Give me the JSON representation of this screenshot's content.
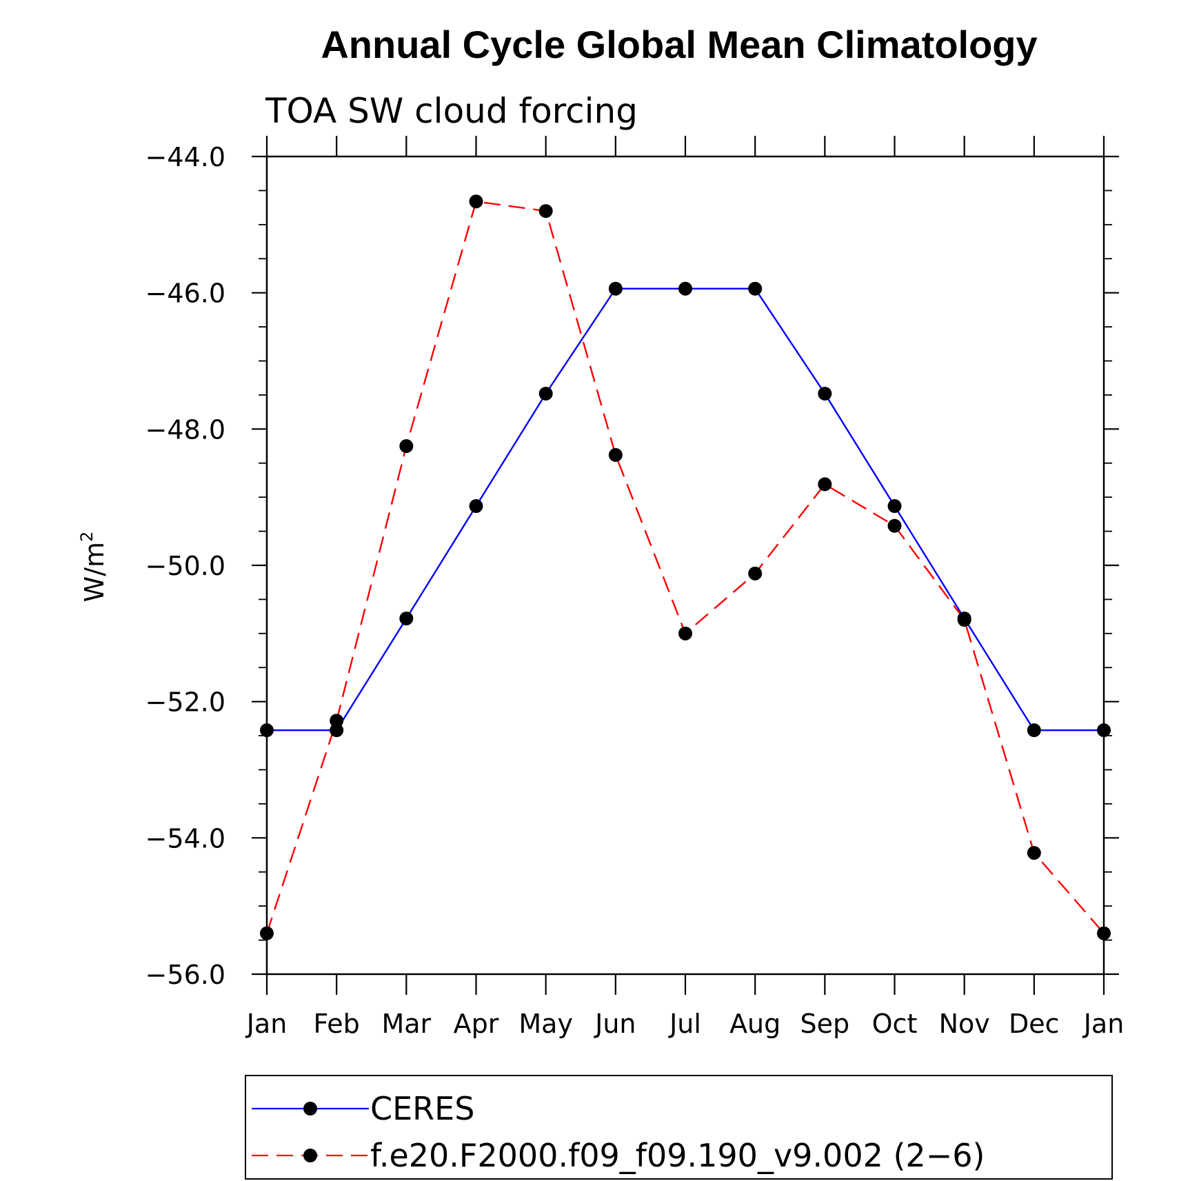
{
  "chart_data": {
    "type": "line",
    "title": "Annual Cycle Global Mean Climatology",
    "subtitle": "TOA SW cloud forcing",
    "ylabel": "W/m",
    "ylabel_superscript": "2",
    "xlabel": "",
    "categories": [
      "Jan",
      "Feb",
      "Mar",
      "Apr",
      "May",
      "Jun",
      "Jul",
      "Aug",
      "Sep",
      "Oct",
      "Nov",
      "Dec",
      "Jan"
    ],
    "ylim": [
      -56.0,
      -44.0
    ],
    "yticks": [
      -56.0,
      -54.0,
      -52.0,
      -50.0,
      -48.0,
      -46.0,
      -44.0
    ],
    "ytick_labels": [
      "−56.0",
      "−54.0",
      "−52.0",
      "−50.0",
      "−48.0",
      "−46.0",
      "−44.0"
    ],
    "series": [
      {
        "name": "CERES",
        "color": "#0000ff",
        "dash": "solid",
        "values": [
          -52.42,
          -52.42,
          -50.78,
          -49.13,
          -47.48,
          -45.94,
          -45.94,
          -45.94,
          -47.48,
          -49.13,
          -50.78,
          -52.42,
          -52.42
        ]
      },
      {
        "name": "f.e20.F2000.f09_f09.190_v9.002 (2−6)",
        "color": "#ff0000",
        "dash": "dashed",
        "values": [
          -55.4,
          -52.28,
          -48.25,
          -44.66,
          -44.8,
          -48.38,
          -51.0,
          -50.12,
          -48.81,
          -49.42,
          -50.8,
          -54.22,
          -55.4
        ]
      }
    ],
    "legend_position": "bottom"
  }
}
